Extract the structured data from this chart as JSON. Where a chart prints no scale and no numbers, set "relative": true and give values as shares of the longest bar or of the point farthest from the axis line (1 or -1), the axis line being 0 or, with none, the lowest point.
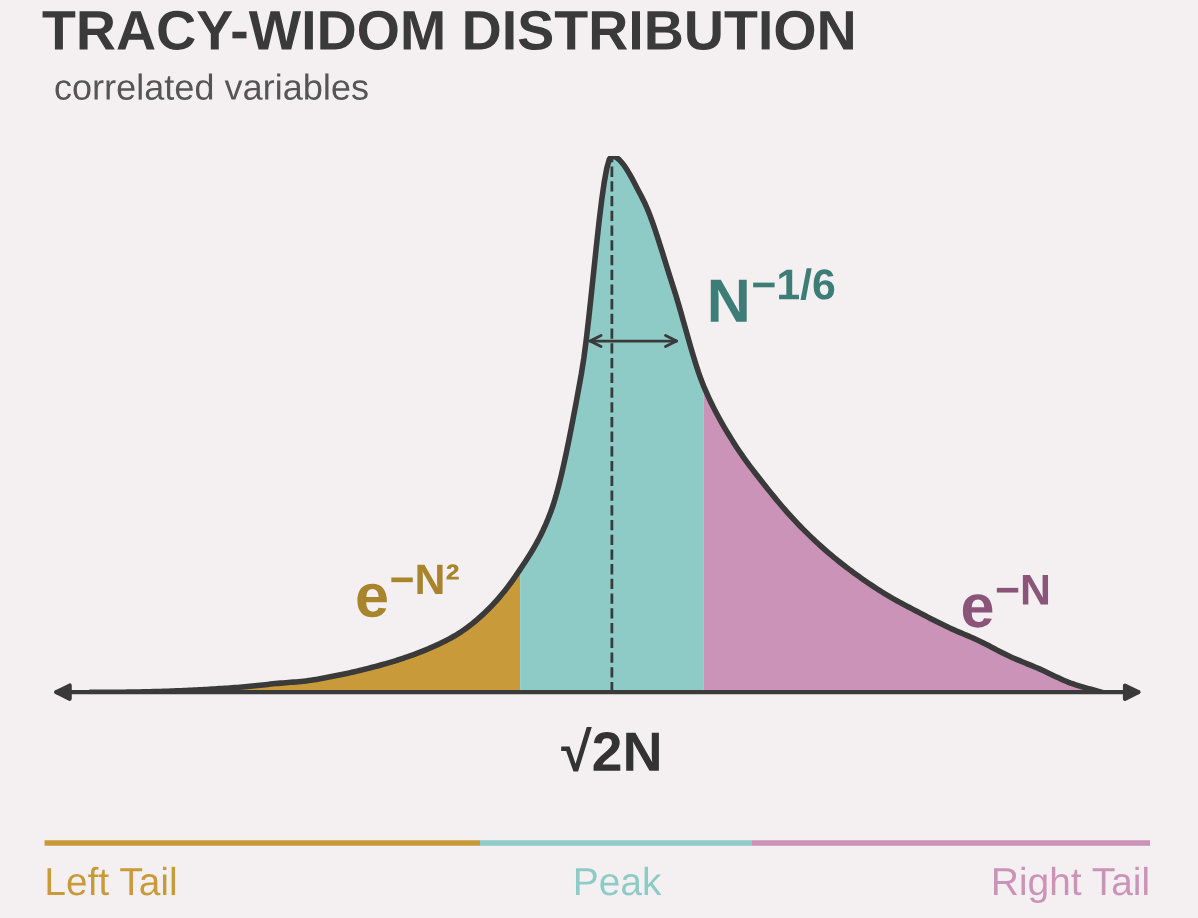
{
  "chart_data": {
    "type": "area",
    "title": "TRACY-WIDOM DISTRIBUTION",
    "subtitle": "correlated variables",
    "relative": true,
    "categories": [
      null,
      null,
      null,
      null,
      null,
      null,
      null,
      null,
      null,
      null,
      null,
      null,
      null,
      null,
      null,
      null,
      null,
      null,
      null,
      null,
      null,
      null,
      null,
      null,
      null,
      null,
      null,
      null,
      null,
      null,
      null,
      null,
      null,
      null
    ],
    "series": [
      {
        "name": "Left Tail",
        "color": "#c99a3a",
        "values": [
          0,
          0,
          0.001,
          0.003,
          0.006,
          0.01,
          0.016,
          0.021,
          0.031,
          0.044,
          0.06,
          0.081,
          0.11,
          0.157,
          0.229,
          null,
          null,
          null,
          null,
          null,
          null,
          null,
          null,
          null,
          null,
          null,
          null,
          null,
          null,
          null,
          null,
          null,
          null,
          null
        ]
      },
      {
        "name": "Peak",
        "color": "#8ecbc6",
        "values": [
          null,
          null,
          null,
          null,
          null,
          null,
          null,
          null,
          null,
          null,
          null,
          null,
          null,
          null,
          0.229,
          0.336,
          0.593,
          1,
          0.921,
          0.757,
          0.571,
          null,
          null,
          null,
          null,
          null,
          null,
          null,
          null,
          null,
          null,
          null,
          null,
          null
        ]
      },
      {
        "name": "Right Tail",
        "color": "#cc93b9",
        "values": [
          null,
          null,
          null,
          null,
          null,
          null,
          null,
          null,
          null,
          null,
          null,
          null,
          null,
          null,
          null,
          null,
          null,
          null,
          null,
          null,
          0.571,
          0.464,
          0.386,
          0.319,
          0.264,
          0.219,
          0.181,
          0.15,
          0.121,
          0.096,
          0.067,
          0.043,
          0.017,
          0
        ]
      },
      {
        "type": "line",
        "color": "#3a3a3a",
        "values": [
          0,
          0,
          0.001,
          0.003,
          0.006,
          0.01,
          0.016,
          0.021,
          0.031,
          0.044,
          0.06,
          0.081,
          0.11,
          0.157,
          0.229,
          0.336,
          0.593,
          1,
          0.921,
          0.757,
          0.571,
          0.464,
          0.386,
          0.319,
          0.264,
          0.219,
          0.181,
          0.15,
          0.121,
          0.096,
          0.067,
          0.043,
          0.017,
          0
        ]
      }
    ],
    "annotations": [
      "e$^{−N²}$",
      "N$^{−1/6}$",
      "e$^{−N}$",
      "√2N"
    ],
    "legend": "bottom"
  }
}
